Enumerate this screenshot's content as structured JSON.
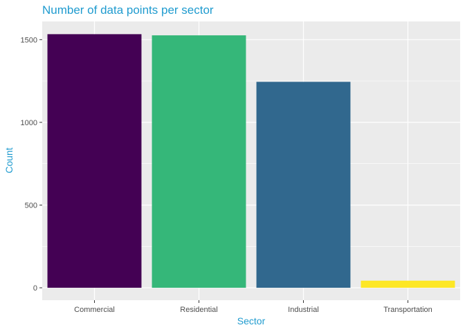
{
  "chart_data": {
    "type": "bar",
    "title": "Number of data points per sector",
    "xlabel": "Sector",
    "ylabel": "Count",
    "categories": [
      "Commercial",
      "Residential",
      "Industrial",
      "Transportation"
    ],
    "values": [
      1533,
      1526,
      1245,
      43
    ],
    "colors": [
      "#440154",
      "#35b779",
      "#31688e",
      "#fde725"
    ],
    "ylim": [
      -75,
      1610
    ],
    "yticks": [
      0,
      500,
      1000,
      1500
    ],
    "ytick_labels": [
      "0",
      "500",
      "1000",
      "1500"
    ],
    "grid": true,
    "legend": "none"
  },
  "theme": {
    "title_color": "#1f9bcf",
    "axis_title_color": "#1f9bcf",
    "panel_background": "#ebebeb",
    "grid_color": "#ffffff",
    "tick_label_color": "#4d4d4d"
  }
}
